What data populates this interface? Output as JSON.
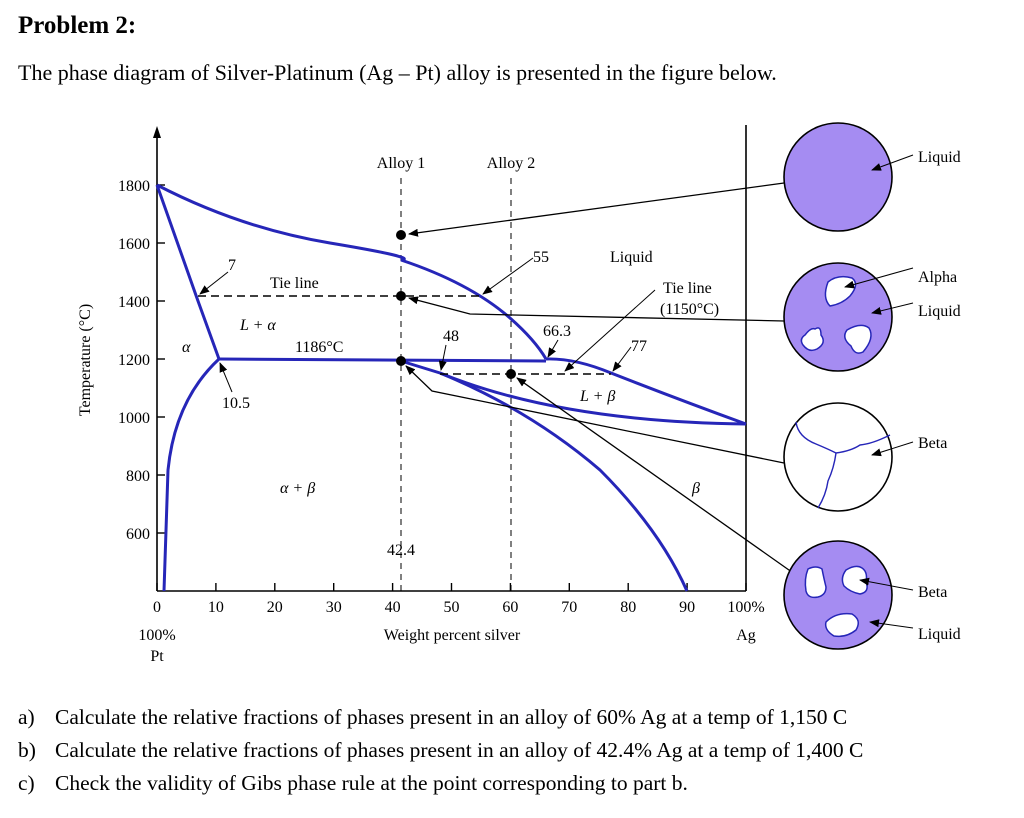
{
  "problem": {
    "title": "Problem 2:",
    "intro": "The phase diagram of Silver-Platinum (Ag – Pt) alloy is presented in the figure below.",
    "questions": [
      {
        "label": "a)",
        "text": "Calculate the relative fractions of phases present in an alloy of 60% Ag at a temp of 1,150 C"
      },
      {
        "label": "b)",
        "text": "Calculate the relative fractions of phases present in an alloy of 42.4% Ag at a temp of 1,400 C"
      },
      {
        "label": "c)",
        "text": "Check the validity of Gibs phase rule at the point corresponding to part b."
      }
    ]
  },
  "diagram": {
    "ylabel": "Temperature (°C)",
    "xlabel": "Weight percent silver",
    "y_ticks": [
      "1800",
      "1600",
      "1400",
      "1200",
      "1000",
      "800",
      "600"
    ],
    "x_ticks": [
      "0",
      "10",
      "20",
      "30",
      "40",
      "50",
      "60",
      "70",
      "80",
      "90",
      "100%"
    ],
    "left_end": [
      "100%",
      "Pt"
    ],
    "right_end": "Ag",
    "alloys": [
      "Alloy 1",
      "Alloy 2"
    ],
    "regions": {
      "liquid": "Liquid",
      "l_alpha": "L + α",
      "alpha": "α",
      "alpha_beta": "α + β",
      "l_beta": "L + β",
      "beta": "β"
    },
    "labels": {
      "tie_line": "Tie line",
      "tie_line_2": "Tie line",
      "tie_temp": "(1150°C)",
      "eutectic_temp": "1186°C",
      "v7": "7",
      "v10_5": "10.5",
      "v55": "55",
      "v48": "48",
      "v66_3": "66.3",
      "v77": "77",
      "v42_4": "42.4"
    },
    "colors": {
      "phase_line": "#2626b8",
      "micro_fill": "#a58cf2"
    }
  },
  "microstructures": [
    {
      "labels": [
        "Liquid"
      ]
    },
    {
      "labels": [
        "Alpha",
        "Liquid"
      ]
    },
    {
      "labels": [
        "Beta"
      ]
    },
    {
      "labels": [
        "Beta",
        "Liquid"
      ]
    }
  ]
}
